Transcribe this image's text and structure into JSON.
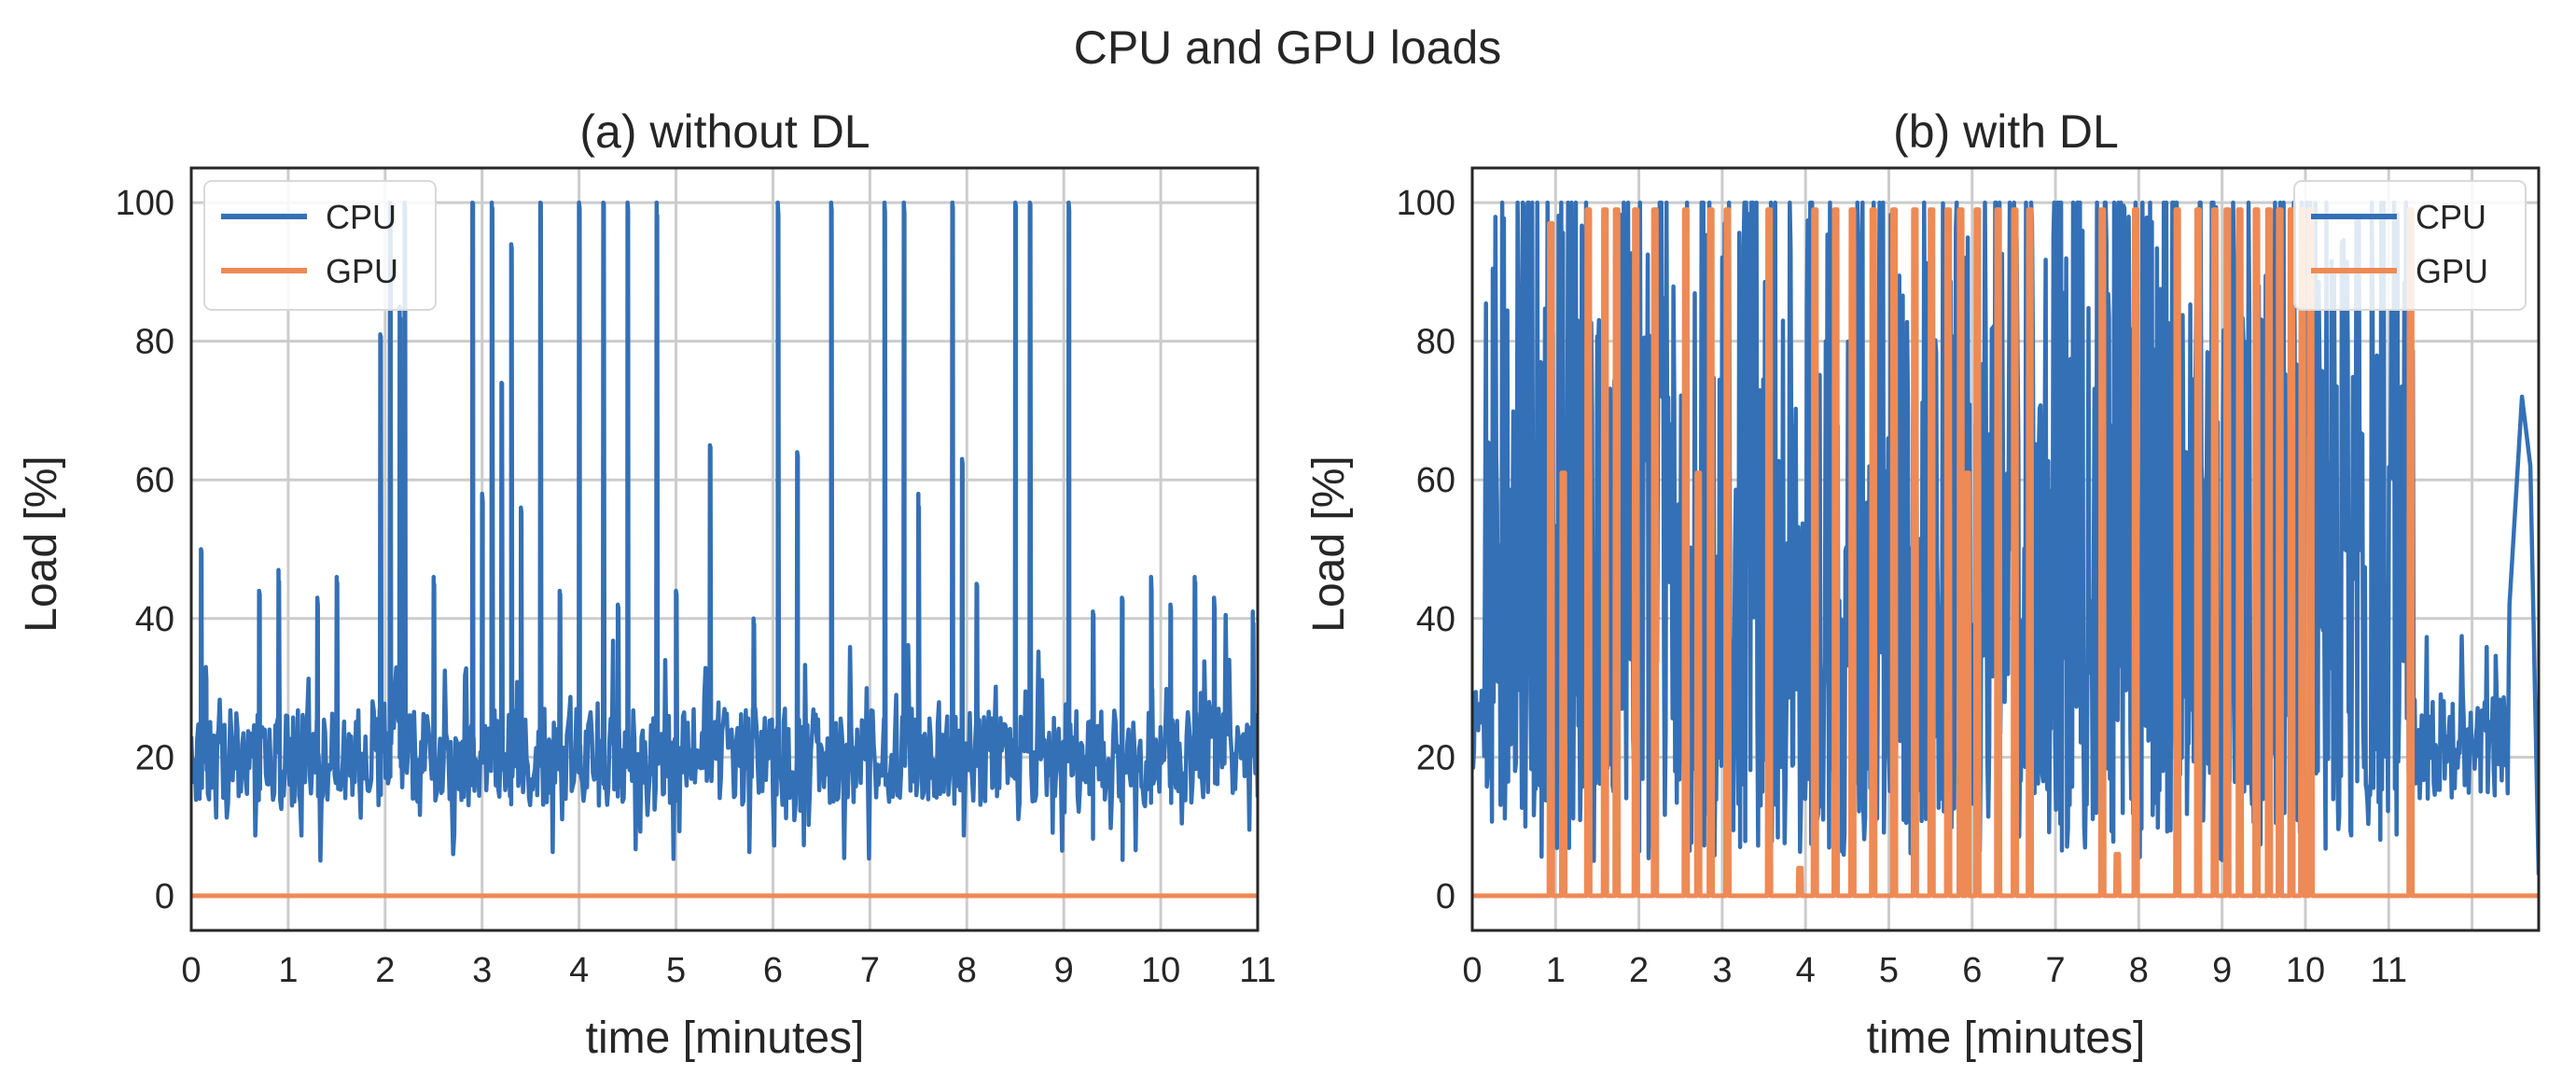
{
  "figure": {
    "title": "CPU and GPU loads"
  },
  "colors": {
    "cpu": "#3470b6",
    "gpu": "#ee8a55",
    "grid": "#cccccc",
    "frame": "#262626"
  },
  "chart_data": [
    {
      "type": "line",
      "title": "(a) without DL",
      "xlabel": "time [minutes]",
      "ylabel": "Load [%]",
      "xlim": [
        0,
        11
      ],
      "ylim": [
        -5,
        105
      ],
      "xticks": [
        0,
        1,
        2,
        3,
        4,
        5,
        6,
        7,
        8,
        9,
        10,
        11
      ],
      "xtick_labels": [
        "0",
        "1",
        "2",
        "3",
        "4",
        "5",
        "6",
        "7",
        "8",
        "9",
        "10",
        "11"
      ],
      "yticks": [
        0,
        20,
        40,
        60,
        80,
        100
      ],
      "ytick_labels": [
        "0",
        "20",
        "40",
        "60",
        "80",
        "100"
      ],
      "grid": true,
      "legend": {
        "position": "top-left",
        "entries": [
          "CPU",
          "GPU"
        ]
      },
      "series": [
        {
          "name": "CPU",
          "pattern": "noise",
          "base": 20,
          "spread": 7,
          "n": 900,
          "spikes": [
            [
              0.1,
              50
            ],
            [
              0.15,
              33
            ],
            [
              0.7,
              44
            ],
            [
              0.9,
              47
            ],
            [
              1.3,
              43
            ],
            [
              1.5,
              46
            ],
            [
              1.95,
              81
            ],
            [
              2.05,
              100
            ],
            [
              2.15,
              85
            ],
            [
              2.2,
              100
            ],
            [
              2.5,
              46
            ],
            [
              2.9,
              100
            ],
            [
              3.0,
              58
            ],
            [
              3.1,
              100
            ],
            [
              3.2,
              74
            ],
            [
              3.3,
              94
            ],
            [
              3.4,
              56
            ],
            [
              3.6,
              100
            ],
            [
              3.8,
              44
            ],
            [
              4.0,
              100
            ],
            [
              4.25,
              100
            ],
            [
              4.4,
              42
            ],
            [
              4.5,
              100
            ],
            [
              4.8,
              100
            ],
            [
              5.0,
              44
            ],
            [
              5.35,
              65
            ],
            [
              5.8,
              40
            ],
            [
              6.05,
              100
            ],
            [
              6.25,
              64
            ],
            [
              6.6,
              100
            ],
            [
              7.15,
              100
            ],
            [
              7.35,
              100
            ],
            [
              7.5,
              58
            ],
            [
              7.85,
              100
            ],
            [
              7.95,
              63
            ],
            [
              8.1,
              45
            ],
            [
              8.5,
              100
            ],
            [
              8.65,
              100
            ],
            [
              9.05,
              100
            ],
            [
              9.3,
              41
            ],
            [
              9.6,
              43
            ],
            [
              9.9,
              46
            ],
            [
              10.1,
              42
            ],
            [
              10.35,
              46
            ],
            [
              10.55,
              43
            ],
            [
              10.95,
              41
            ]
          ]
        },
        {
          "name": "GPU",
          "pattern": "constant",
          "value": 0
        }
      ]
    },
    {
      "type": "line",
      "title": "(b) with DL",
      "xlabel": "time [minutes]",
      "ylabel": "Load [%]",
      "xlim": [
        0,
        12.8
      ],
      "ylim": [
        -5,
        105
      ],
      "xticks": [
        0,
        1,
        2,
        3,
        4,
        5,
        6,
        7,
        8,
        9,
        10,
        11,
        12
      ],
      "xtick_labels": [
        "0",
        "1",
        "2",
        "3",
        "4",
        "5",
        "6",
        "7",
        "8",
        "9",
        "10",
        "11",
        ""
      ],
      "yticks": [
        0,
        20,
        40,
        60,
        80,
        100
      ],
      "ytick_labels": [
        "0",
        "20",
        "40",
        "60",
        "80",
        "100"
      ],
      "grid": true,
      "legend": {
        "position": "top-right",
        "entries": [
          "CPU",
          "GPU"
        ]
      },
      "series": [
        {
          "name": "CPU",
          "pattern": "bursty",
          "n": 1100,
          "end_segment": [
            [
              12.45,
              42
            ],
            [
              12.6,
              72
            ],
            [
              12.7,
              62
            ],
            [
              12.8,
              3
            ]
          ]
        },
        {
          "name": "GPU",
          "pattern": "bursts",
          "bursts": [
            [
              0.93,
              97
            ],
            [
              1.08,
              61
            ],
            [
              1.38,
              99
            ],
            [
              1.58,
              99
            ],
            [
              1.72,
              99
            ],
            [
              1.95,
              99
            ],
            [
              2.18,
              99
            ],
            [
              2.55,
              99
            ],
            [
              2.7,
              61
            ],
            [
              2.85,
              99
            ],
            [
              3.05,
              99
            ],
            [
              3.55,
              99
            ],
            [
              3.92,
              4
            ],
            [
              4.1,
              99
            ],
            [
              4.35,
              99
            ],
            [
              4.55,
              99
            ],
            [
              4.8,
              99
            ],
            [
              5.05,
              99
            ],
            [
              5.3,
              99
            ],
            [
              5.5,
              99
            ],
            [
              5.7,
              99
            ],
            [
              5.85,
              99
            ],
            [
              5.93,
              61
            ],
            [
              6.05,
              99
            ],
            [
              6.3,
              99
            ],
            [
              6.5,
              99
            ],
            [
              6.68,
              99
            ],
            [
              7.55,
              99
            ],
            [
              7.73,
              6
            ],
            [
              7.95,
              99
            ],
            [
              8.45,
              99
            ],
            [
              8.7,
              99
            ],
            [
              8.9,
              99
            ],
            [
              9.05,
              99
            ],
            [
              9.2,
              99
            ],
            [
              9.4,
              99
            ],
            [
              9.55,
              99
            ],
            [
              9.68,
              99
            ],
            [
              9.82,
              99
            ],
            [
              9.95,
              99
            ],
            [
              10.05,
              99
            ],
            [
              11.25,
              99
            ]
          ]
        }
      ]
    }
  ]
}
